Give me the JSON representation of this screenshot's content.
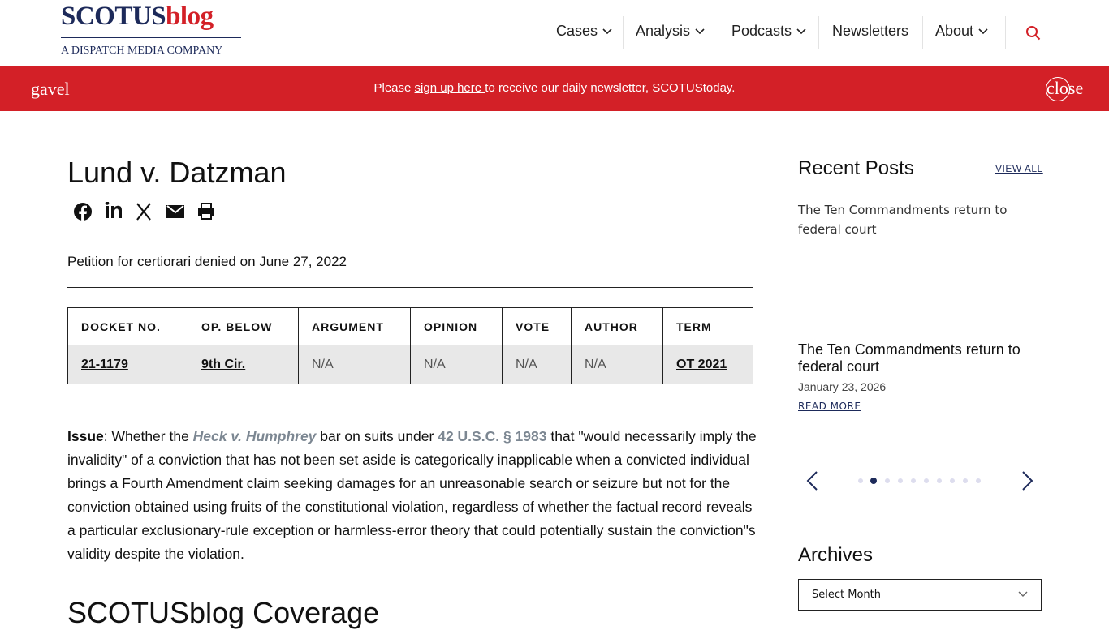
{
  "header": {
    "logo_main": "SCOTUS",
    "logo_blog": "blog",
    "logo_sub": "A DISPATCH MEDIA COMPANY",
    "nav": [
      "Cases",
      "Analysis",
      "Podcasts",
      "Newsletters",
      "About"
    ]
  },
  "banner": {
    "icon": "gavel",
    "text_before": "Please ",
    "link": "sign up here ",
    "text_after": "to receive our daily newsletter, SCOTUStoday.",
    "close": "close"
  },
  "article": {
    "title": "Lund v. Datzman",
    "status": "Petition for certiorari denied on June 27, 2022",
    "table": {
      "headers": [
        "DOCKET NO.",
        "OP. BELOW",
        "ARGUMENT",
        "OPINION",
        "VOTE",
        "AUTHOR",
        "TERM"
      ],
      "rows": [
        [
          "21-1179",
          "9th Cir.",
          "N/A",
          "N/A",
          "N/A",
          "N/A",
          "OT 2021"
        ]
      ]
    },
    "issue": {
      "label": "Issue",
      "parts": [
        ": Whether the ",
        "Heck v. Humphrey",
        " bar on suits under ",
        "42 U.S.C. § 1983",
        " that \"would necessarily imply the invalidity\" of a conviction that has not been set aside is categorically inapplicable when a convicted individual brings a Fourth Amendment claim seeking damages for an unreasonable search or seizure but not for the conviction obtained using fruits of the constitutional violation, regardless of whether the factual record reveals a particular exclusionary-rule exception or harmless-error theory that could potentially sustain the conviction\"s validity despite the violation."
      ]
    },
    "coverage_heading": "SCOTUSblog Coverage"
  },
  "sidebar": {
    "recent_heading": "Recent Posts",
    "view_all": "VIEW ALL",
    "post": {
      "image_alt": "The Ten Commandments return to federal court",
      "title": "The Ten Commandments return to federal court",
      "date": "January 23, 2026",
      "read_more": "READ MORE"
    },
    "archives_heading": "Archives",
    "archives_select": "Select Month"
  }
}
